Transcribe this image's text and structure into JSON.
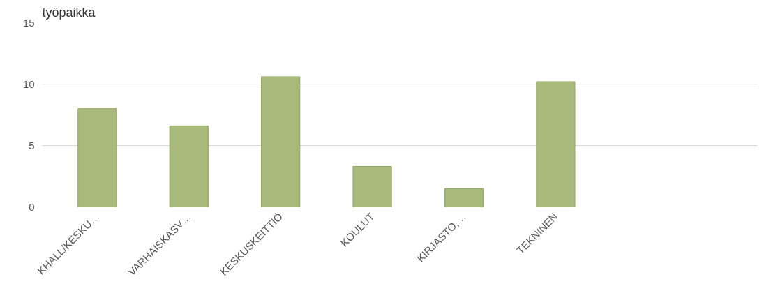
{
  "chart_data": {
    "type": "bar",
    "title": "työpaikka",
    "categories": [
      "KHALL/KESKU…",
      "VARHAISKASV…",
      "KESKUSKEITTIÖ",
      "KOULUT",
      "KIRJASTO,…",
      "TEKNINEN"
    ],
    "values": [
      8.0,
      6.6,
      10.6,
      3.3,
      1.5,
      10.2
    ],
    "color": "#a9b97c",
    "ylim": [
      0,
      15
    ],
    "yticks": [
      0,
      5,
      10,
      15
    ],
    "grid": "y"
  }
}
